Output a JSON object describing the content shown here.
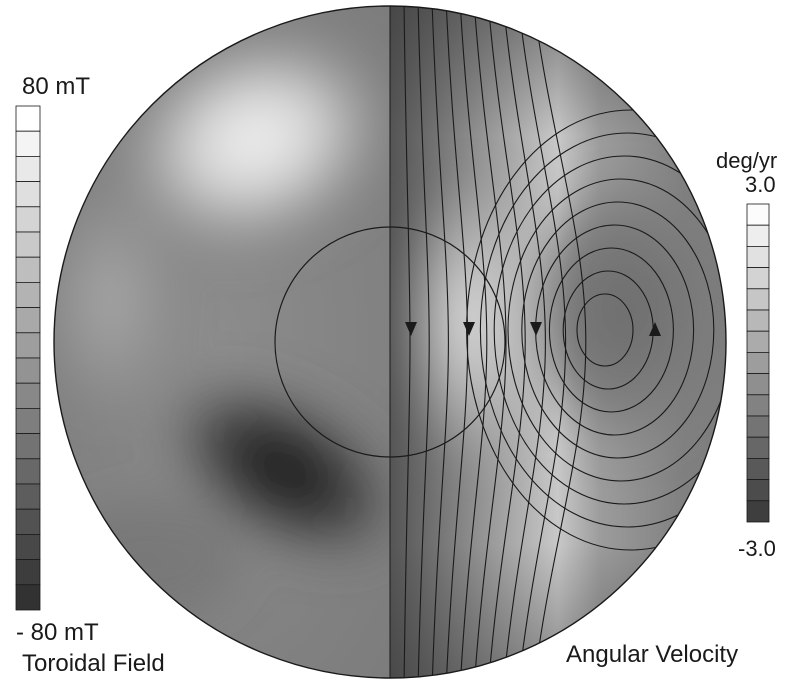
{
  "toroidal_scale": {
    "max_label": "80 mT",
    "min_label": "- 80 mT",
    "title": "Toroidal Field",
    "levels": 20
  },
  "angular_scale": {
    "unit_label": "deg/yr",
    "max_label": "3.0",
    "min_label": "-3.0",
    "title": "Angular Velocity",
    "levels": 15
  },
  "colors": {
    "background": "#ffffff",
    "ink": "#1a1a1a"
  }
}
